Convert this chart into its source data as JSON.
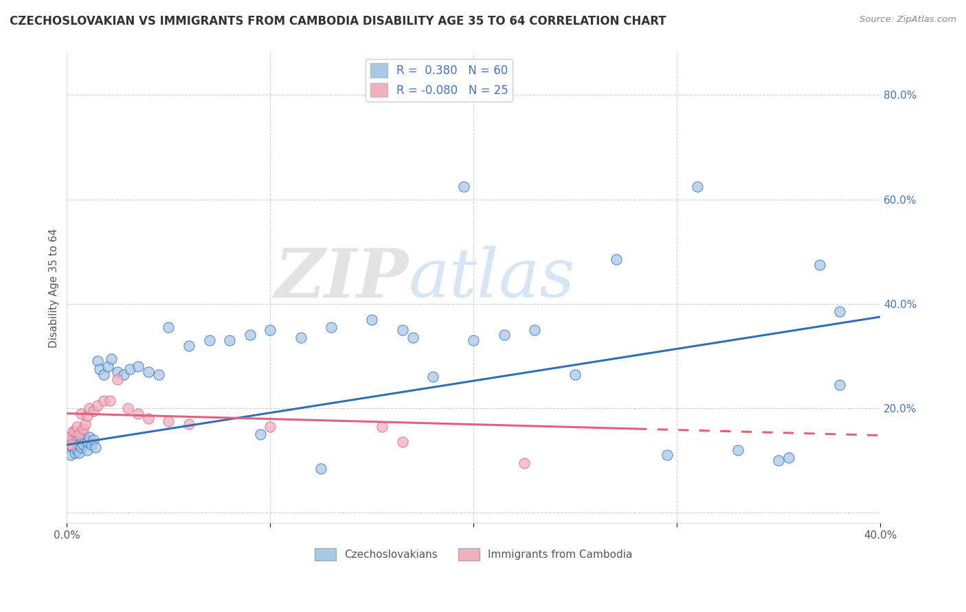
{
  "title": "CZECHOSLOVAKIAN VS IMMIGRANTS FROM CAMBODIA DISABILITY AGE 35 TO 64 CORRELATION CHART",
  "source": "Source: ZipAtlas.com",
  "ylabel": "Disability Age 35 to 64",
  "xlim": [
    0.0,
    0.4
  ],
  "ylim": [
    -0.02,
    0.88
  ],
  "x_ticks": [
    0.0,
    0.1,
    0.2,
    0.3,
    0.4
  ],
  "y_ticks": [
    0.0,
    0.2,
    0.4,
    0.6,
    0.8
  ],
  "blue_R": 0.38,
  "blue_N": 60,
  "pink_R": -0.08,
  "pink_N": 25,
  "blue_color": "#A8C8E8",
  "pink_color": "#F0B0C0",
  "blue_line_color": "#3070B0",
  "pink_line_color": "#E06080",
  "pink_line_solid_end": 0.28,
  "watermark_zip": "ZIP",
  "watermark_atlas": "atlas",
  "legend1_label": "Czechoslovakians",
  "legend2_label": "Immigrants from Cambodia",
  "blue_trend_x0": 0.0,
  "blue_trend_y0": 0.13,
  "blue_trend_x1": 0.4,
  "blue_trend_y1": 0.375,
  "pink_trend_x0": 0.0,
  "pink_trend_y0": 0.19,
  "pink_trend_x1": 0.4,
  "pink_trend_y1": 0.148,
  "blue_scatter_x": [
    0.001,
    0.002,
    0.003,
    0.003,
    0.004,
    0.004,
    0.005,
    0.005,
    0.006,
    0.006,
    0.007,
    0.007,
    0.008,
    0.008,
    0.009,
    0.01,
    0.01,
    0.011,
    0.012,
    0.013,
    0.014,
    0.015,
    0.016,
    0.018,
    0.02,
    0.022,
    0.025,
    0.028,
    0.031,
    0.035,
    0.04,
    0.045,
    0.05,
    0.06,
    0.07,
    0.08,
    0.09,
    0.1,
    0.115,
    0.13,
    0.15,
    0.165,
    0.18,
    0.2,
    0.215,
    0.23,
    0.25,
    0.27,
    0.295,
    0.31,
    0.33,
    0.35,
    0.37,
    0.38,
    0.38,
    0.355,
    0.17,
    0.195,
    0.125,
    0.095
  ],
  "blue_scatter_y": [
    0.13,
    0.11,
    0.125,
    0.145,
    0.115,
    0.135,
    0.12,
    0.14,
    0.115,
    0.13,
    0.125,
    0.145,
    0.13,
    0.15,
    0.14,
    0.12,
    0.135,
    0.145,
    0.13,
    0.14,
    0.125,
    0.29,
    0.275,
    0.265,
    0.28,
    0.295,
    0.27,
    0.265,
    0.275,
    0.28,
    0.27,
    0.265,
    0.355,
    0.32,
    0.33,
    0.33,
    0.34,
    0.35,
    0.335,
    0.355,
    0.37,
    0.35,
    0.26,
    0.33,
    0.34,
    0.35,
    0.265,
    0.485,
    0.11,
    0.625,
    0.12,
    0.1,
    0.475,
    0.385,
    0.245,
    0.105,
    0.335,
    0.625,
    0.085,
    0.15
  ],
  "pink_scatter_x": [
    0.001,
    0.002,
    0.003,
    0.004,
    0.005,
    0.006,
    0.007,
    0.008,
    0.009,
    0.01,
    0.011,
    0.013,
    0.015,
    0.018,
    0.021,
    0.025,
    0.03,
    0.035,
    0.04,
    0.05,
    0.06,
    0.1,
    0.155,
    0.165,
    0.225
  ],
  "pink_scatter_y": [
    0.145,
    0.13,
    0.155,
    0.155,
    0.165,
    0.15,
    0.19,
    0.16,
    0.17,
    0.185,
    0.2,
    0.195,
    0.205,
    0.215,
    0.215,
    0.255,
    0.2,
    0.19,
    0.18,
    0.175,
    0.17,
    0.165,
    0.165,
    0.135,
    0.095
  ]
}
